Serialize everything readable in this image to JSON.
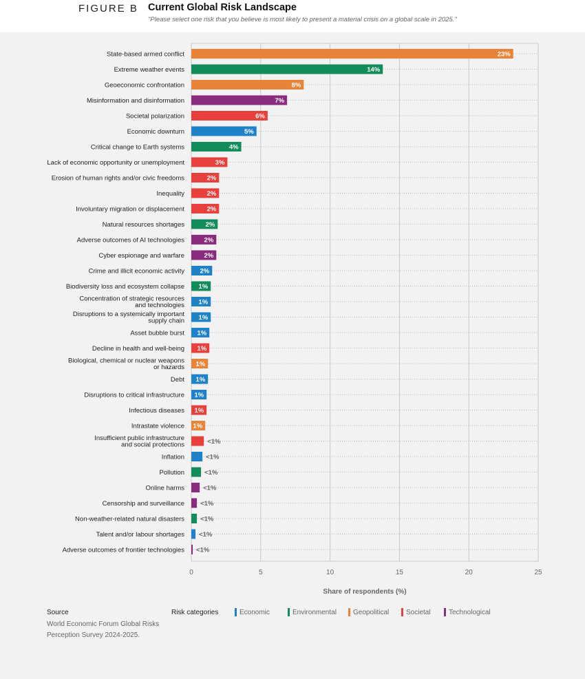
{
  "header": {
    "figure": "FIGURE B",
    "title": "Current Global Risk Landscape",
    "subtitle": "\"Please select one risk that you believe is most likely to present a material crisis on a global scale in 2025.\""
  },
  "colors": {
    "Economic": "#1f82c8",
    "Environmental": "#118c5a",
    "Geopolitical": "#e8833a",
    "Societal": "#e8403c",
    "Technological": "#8a2c7e"
  },
  "chart_data": {
    "type": "bar",
    "orientation": "horizontal",
    "xlabel": "Share of respondents (%)",
    "xlim": [
      0,
      25
    ],
    "xticks": [
      0,
      5,
      10,
      15,
      20,
      25
    ],
    "grid": true,
    "legend_title": "Risk categories",
    "legend": [
      "Economic",
      "Environmental",
      "Geopolitical",
      "Societal",
      "Technological"
    ],
    "legend_placement": "bottom",
    "bars": [
      {
        "label": "State-based armed conflict",
        "value": 23.2,
        "data_label": "23%",
        "category": "Geopolitical"
      },
      {
        "label": "Extreme weather events",
        "value": 13.8,
        "data_label": "14%",
        "category": "Environmental"
      },
      {
        "label": "Geoeconomic confrontation",
        "value": 8.1,
        "data_label": "8%",
        "category": "Geopolitical"
      },
      {
        "label": "Misinformation and disinformation",
        "value": 6.9,
        "data_label": "7%",
        "category": "Technological"
      },
      {
        "label": "Societal polarization",
        "value": 5.5,
        "data_label": "6%",
        "category": "Societal"
      },
      {
        "label": "Economic downturn",
        "value": 4.7,
        "data_label": "5%",
        "category": "Economic"
      },
      {
        "label": "Critical change to Earth systems",
        "value": 3.6,
        "data_label": "4%",
        "category": "Environmental"
      },
      {
        "label": "Lack of economic opportunity or unemployment",
        "value": 2.6,
        "data_label": "3%",
        "category": "Societal"
      },
      {
        "label": "Erosion of human rights and/or civic freedoms",
        "value": 2.0,
        "data_label": "2%",
        "category": "Societal"
      },
      {
        "label": "Inequality",
        "value": 2.0,
        "data_label": "2%",
        "category": "Societal"
      },
      {
        "label": "Involuntary migration or displacement",
        "value": 2.0,
        "data_label": "2%",
        "category": "Societal"
      },
      {
        "label": "Natural resources shortages",
        "value": 1.9,
        "data_label": "2%",
        "category": "Environmental"
      },
      {
        "label": "Adverse outcomes of AI technologies",
        "value": 1.8,
        "data_label": "2%",
        "category": "Technological"
      },
      {
        "label": "Cyber espionage and warfare",
        "value": 1.8,
        "data_label": "2%",
        "category": "Technological"
      },
      {
        "label": "Crime and illicit economic activity",
        "value": 1.5,
        "data_label": "2%",
        "category": "Economic"
      },
      {
        "label": "Biodiversity loss and ecosystem collapse",
        "value": 1.4,
        "data_label": "1%",
        "category": "Environmental"
      },
      {
        "label": "Concentration of strategic resources|and technologies",
        "value": 1.4,
        "data_label": "1%",
        "category": "Economic"
      },
      {
        "label": "Disruptions to a systemically important|supply chain",
        "value": 1.4,
        "data_label": "1%",
        "category": "Economic"
      },
      {
        "label": "Asset bubble burst",
        "value": 1.3,
        "data_label": "1%",
        "category": "Economic"
      },
      {
        "label": "Decline in health and well-being",
        "value": 1.3,
        "data_label": "1%",
        "category": "Societal"
      },
      {
        "label": "Biological, chemical or nuclear weapons|or hazards",
        "value": 1.2,
        "data_label": "1%",
        "category": "Geopolitical"
      },
      {
        "label": "Debt",
        "value": 1.2,
        "data_label": "1%",
        "category": "Economic"
      },
      {
        "label": "Disruptions to critical infrastructure",
        "value": 1.1,
        "data_label": "1%",
        "category": "Economic"
      },
      {
        "label": "Infectious diseases",
        "value": 1.1,
        "data_label": "1%",
        "category": "Societal"
      },
      {
        "label": "Intrastate violence",
        "value": 1.0,
        "data_label": "1%",
        "category": "Geopolitical"
      },
      {
        "label": "Insufficient public infrastructure|and social protections",
        "value": 0.9,
        "data_label": "<1%",
        "category": "Societal"
      },
      {
        "label": "Inflation",
        "value": 0.8,
        "data_label": "<1%",
        "category": "Economic"
      },
      {
        "label": "Pollution",
        "value": 0.7,
        "data_label": "<1%",
        "category": "Environmental"
      },
      {
        "label": "Online harms",
        "value": 0.6,
        "data_label": "<1%",
        "category": "Technological"
      },
      {
        "label": "Censorship and surveillance",
        "value": 0.4,
        "data_label": "<1%",
        "category": "Technological"
      },
      {
        "label": "Non-weather-related natural disasters",
        "value": 0.4,
        "data_label": "<1%",
        "category": "Environmental"
      },
      {
        "label": "Talent and/or labour shortages",
        "value": 0.3,
        "data_label": "<1%",
        "category": "Economic"
      },
      {
        "label": "Adverse outcomes of frontier technologies",
        "value": 0.1,
        "data_label": "<1%",
        "category": "Technological"
      }
    ]
  },
  "source": {
    "heading": "Source",
    "text": "World Economic Forum Global Risks Perception Survey 2024-2025."
  }
}
